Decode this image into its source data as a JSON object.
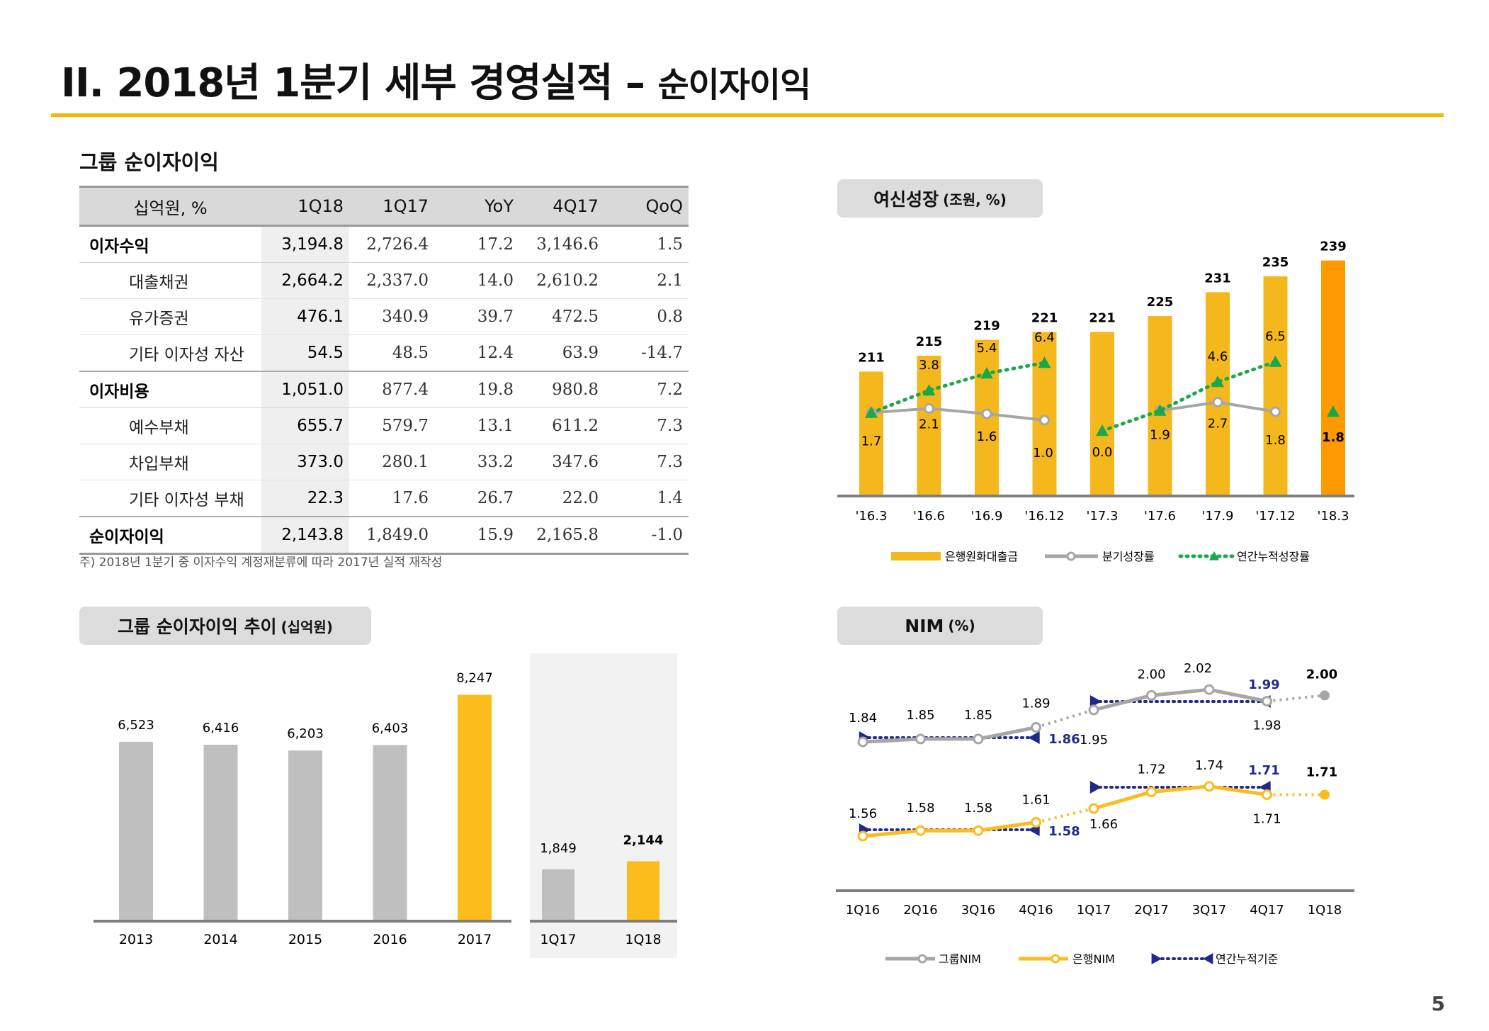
{
  "page": {
    "title_main": "II. 2018년 1분기 세부 경영실적",
    "title_sep": " – ",
    "title_sub": "순이자이익",
    "page_number": "5"
  },
  "table": {
    "title": "그룹 순이자이익",
    "headers": [
      "십억원, %",
      "1Q18",
      "1Q17",
      "YoY",
      "4Q17",
      "QoQ"
    ],
    "rows": [
      {
        "label": "이자수익",
        "level": "major",
        "values": [
          "3,194.8",
          "2,726.4",
          "17.2",
          "3,146.6",
          "1.5"
        ]
      },
      {
        "label": "대출채권",
        "level": "minor",
        "values": [
          "2,664.2",
          "2,337.0",
          "14.0",
          "2,610.2",
          "2.1"
        ]
      },
      {
        "label": "유가증권",
        "level": "minor",
        "values": [
          "476.1",
          "340.9",
          "39.7",
          "472.5",
          "0.8"
        ]
      },
      {
        "label": "기타 이자성 자산",
        "level": "minor",
        "values": [
          "54.5",
          "48.5",
          "12.4",
          "63.9",
          "-14.7"
        ]
      },
      {
        "label": "이자비용",
        "level": "major",
        "values": [
          "1,051.0",
          "877.4",
          "19.8",
          "980.8",
          "7.2"
        ]
      },
      {
        "label": "예수부채",
        "level": "minor",
        "values": [
          "655.7",
          "579.7",
          "13.1",
          "611.2",
          "7.3"
        ]
      },
      {
        "label": "차입부채",
        "level": "minor",
        "values": [
          "373.0",
          "280.1",
          "33.2",
          "347.6",
          "7.3"
        ]
      },
      {
        "label": "기타 이자성 부채",
        "level": "minor",
        "values": [
          "22.3",
          "17.6",
          "26.7",
          "22.0",
          "1.4"
        ]
      },
      {
        "label": "순이자이익",
        "level": "total",
        "values": [
          "2,143.8",
          "1,849.0",
          "15.9",
          "2,165.8",
          "-1.0"
        ]
      }
    ],
    "note": "주) 2018년 1분기 중 이자수익 계정재분류에 따라 2017년 실적 재작성"
  },
  "panels": {
    "loan_growth": {
      "label": "여신성장",
      "unit": "(조원, %)"
    },
    "nii_trend": {
      "label": "그룹 순이자이익 추이",
      "unit": "(십억원)"
    },
    "nim": {
      "label": "NIM",
      "unit": "(%)"
    }
  },
  "chart_data": [
    {
      "id": "loan_growth",
      "type": "bar",
      "categories": [
        "'16.3",
        "'16.6",
        "'16.9",
        "'16.12",
        "'17.3",
        "'17.6",
        "'17.9",
        "'17.12",
        "'18.3"
      ],
      "series": [
        {
          "name": "은행원화대출금",
          "kind": "bar",
          "values": [
            211,
            215,
            219,
            221,
            221,
            225,
            231,
            235,
            239
          ],
          "colors": [
            "#f5b81c",
            "#f5b81c",
            "#f5b81c",
            "#f5b81c",
            "#f5b81c",
            "#f5b81c",
            "#f5b81c",
            "#f5b81c",
            "#ff9900"
          ]
        },
        {
          "name": "분기성장률",
          "kind": "line",
          "values": [
            1.7,
            2.1,
            1.6,
            1.0,
            0.0,
            1.9,
            2.7,
            1.8,
            1.8
          ],
          "color": "#a6a6a6"
        },
        {
          "name": "연간누적성장률",
          "kind": "line-dotted",
          "values": [
            1.7,
            3.8,
            5.4,
            6.4,
            0.0,
            1.9,
            4.6,
            6.5,
            1.8
          ],
          "color": "#1aa84b"
        }
      ],
      "legend": "bottom"
    },
    {
      "id": "nii_trend",
      "type": "bar",
      "categories": [
        "2013",
        "2014",
        "2015",
        "2016",
        "2017"
      ],
      "values": [
        6523,
        6416,
        6203,
        6403,
        8247
      ],
      "value_labels": [
        "6,523",
        "6,416",
        "6,203",
        "6,403",
        "8,247"
      ],
      "colors": [
        "#bfbfbf",
        "#bfbfbf",
        "#bfbfbf",
        "#bfbfbf",
        "#fbbc1c"
      ],
      "inset": {
        "categories": [
          "1Q17",
          "1Q18"
        ],
        "values": [
          1849,
          2144
        ],
        "value_labels": [
          "1,849",
          "2,144"
        ],
        "colors": [
          "#bfbfbf",
          "#fbbc1c"
        ]
      }
    },
    {
      "id": "nim",
      "type": "line",
      "categories": [
        "1Q16",
        "2Q16",
        "3Q16",
        "4Q16",
        "1Q17",
        "2Q17",
        "3Q17",
        "4Q17",
        "1Q18"
      ],
      "series": [
        {
          "name": "그룹NIM",
          "values": [
            1.84,
            1.85,
            1.85,
            1.89,
            1.95,
            2.0,
            2.02,
            1.98,
            2.0
          ],
          "value_labels": [
            "1.84",
            "1.85",
            "1.85",
            "1.89",
            "1.95",
            "2.00",
            "2.02",
            "1.98",
            "2.00"
          ],
          "color": "#a6a6a6"
        },
        {
          "name": "은행NIM",
          "values": [
            1.56,
            1.58,
            1.58,
            1.61,
            1.66,
            1.72,
            1.74,
            1.71,
            1.71
          ],
          "value_labels": [
            "1.56",
            "1.58",
            "1.58",
            "1.61",
            "1.66",
            "1.72",
            "1.74",
            "1.71",
            "1.71"
          ],
          "color": "#fbbc1c"
        },
        {
          "name": "연간누적기준",
          "segments": [
            {
              "series": "그룹NIM",
              "from": "1Q16",
              "to": "4Q16",
              "value_label": "1.86"
            },
            {
              "series": "그룹NIM",
              "from": "1Q17",
              "to": "4Q17",
              "value_label": "1.99"
            },
            {
              "series": "은행NIM",
              "from": "1Q16",
              "to": "4Q16",
              "value_label": "1.58"
            },
            {
              "series": "은행NIM",
              "from": "1Q17",
              "to": "4Q17",
              "value_label": "1.71"
            }
          ],
          "color": "#1f2a8a"
        }
      ],
      "legend": "bottom"
    }
  ]
}
